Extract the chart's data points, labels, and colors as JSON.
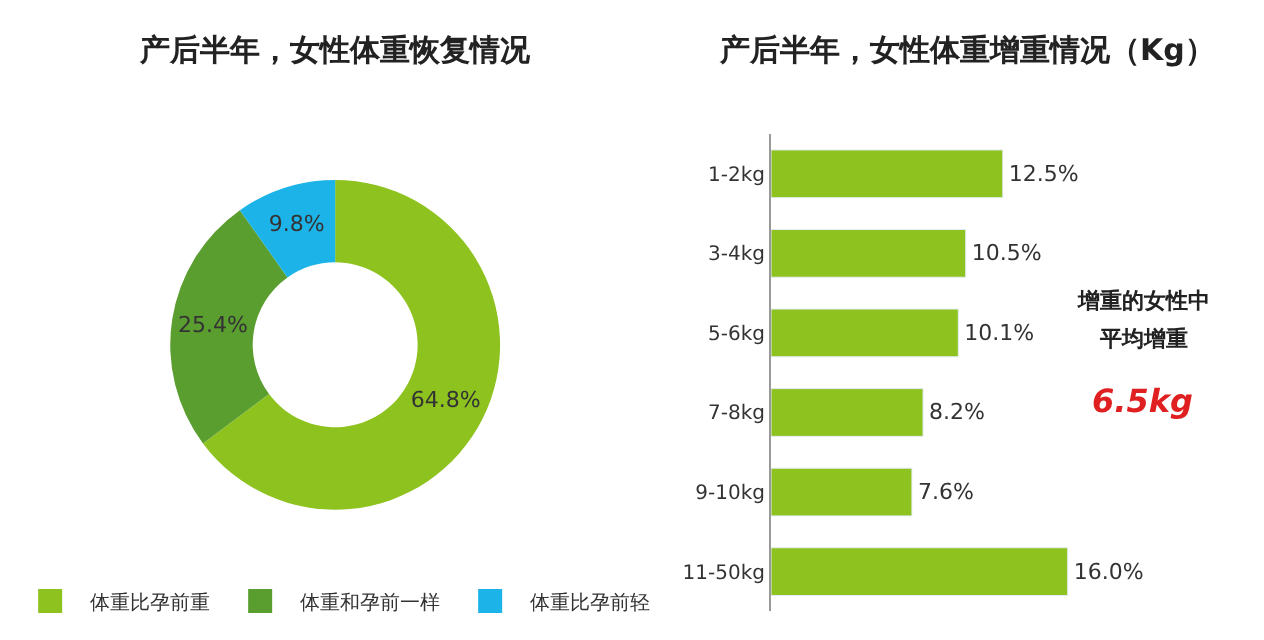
{
  "chart_data": [
    {
      "type": "donut",
      "title": "产后半年，女性体重恢复情况",
      "categories": [
        "体重比孕前重",
        "体重和孕前一样",
        "体重比孕前轻"
      ],
      "values": [
        64.8,
        25.4,
        9.8
      ],
      "colors": [
        "#8dc21f",
        "#5b9e30",
        "#1cb4e8"
      ],
      "value_labels": [
        "64.8%",
        "25.4%",
        "9.8%"
      ],
      "legend": "bottom"
    },
    {
      "type": "bar",
      "orientation": "horizontal",
      "title": "产后半年，女性体重增重情况（Kg）",
      "categories": [
        "1-2kg",
        "3-4kg",
        "5-6kg",
        "7-8kg",
        "9-10kg",
        "11-50kg"
      ],
      "values": [
        12.5,
        10.5,
        10.1,
        8.2,
        7.6,
        16.0
      ],
      "color": "#8dc21f",
      "value_labels": [
        "12.5%",
        "10.5%",
        "10.1%",
        "8.2%",
        "7.6%",
        "16.0%"
      ],
      "annotations": [
        "增重的女性中",
        "平均增重",
        "6.5kg"
      ]
    }
  ]
}
